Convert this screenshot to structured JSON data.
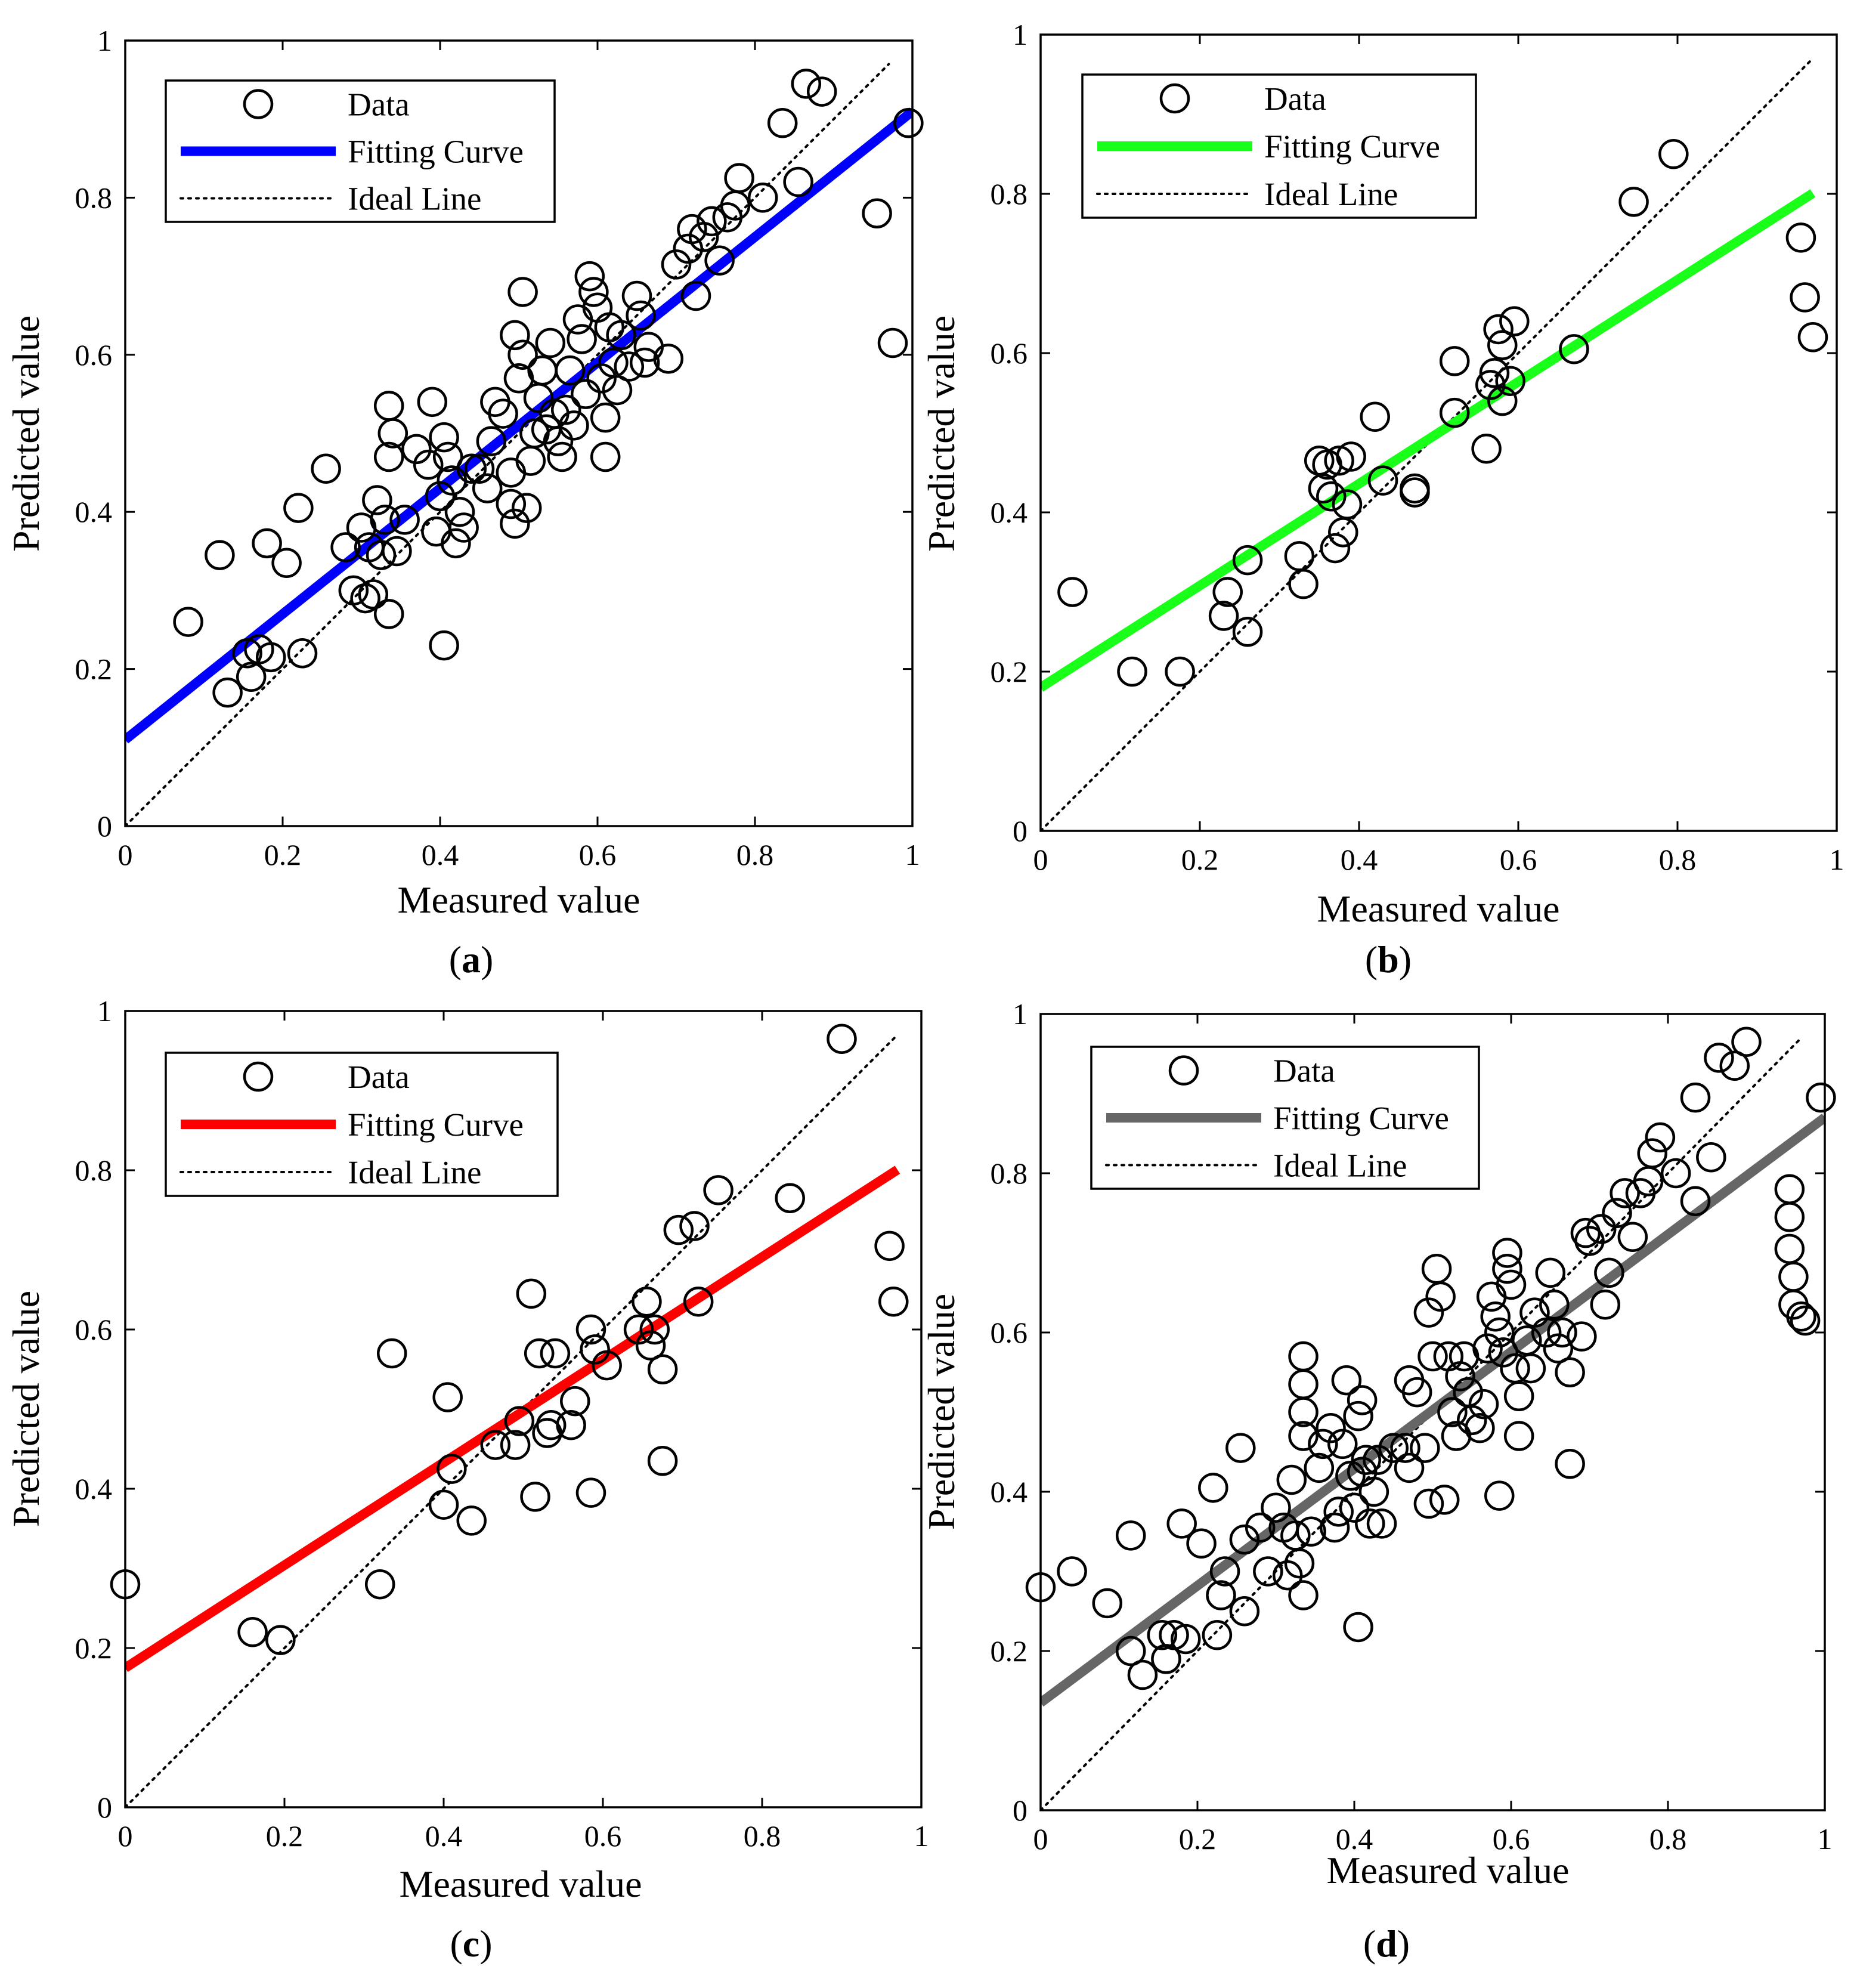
{
  "chart_data": [
    {
      "panel": "a",
      "type": "scatter",
      "caption": "(a)",
      "xlabel": "Measured value",
      "ylabel": "Predicted value",
      "xlim": [
        0,
        1
      ],
      "ylim": [
        0,
        1
      ],
      "xticks": [
        "0",
        "0.2",
        "0.4",
        "0.6",
        "0.8",
        "1"
      ],
      "yticks": [
        "0",
        "0.2",
        "0.4",
        "0.6",
        "0.8",
        "1"
      ],
      "legend": {
        "data": "Data",
        "fit": "Fitting Curve",
        "ideal": "Ideal Line"
      },
      "fit": {
        "slope": 0.8,
        "intercept": 0.11,
        "color": "#0000ff",
        "x_range": [
          0,
          1
        ]
      },
      "ideal_color": "#000000",
      "points": [
        [
          0.08,
          0.26
        ],
        [
          0.12,
          0.345
        ],
        [
          0.13,
          0.17
        ],
        [
          0.155,
          0.22
        ],
        [
          0.16,
          0.19
        ],
        [
          0.17,
          0.225
        ],
        [
          0.18,
          0.36
        ],
        [
          0.185,
          0.215
        ],
        [
          0.205,
          0.335
        ],
        [
          0.22,
          0.405
        ],
        [
          0.225,
          0.22
        ],
        [
          0.255,
          0.455
        ],
        [
          0.28,
          0.355
        ],
        [
          0.29,
          0.3
        ],
        [
          0.3,
          0.38
        ],
        [
          0.305,
          0.29
        ],
        [
          0.31,
          0.355
        ],
        [
          0.315,
          0.295
        ],
        [
          0.32,
          0.415
        ],
        [
          0.325,
          0.345
        ],
        [
          0.33,
          0.39
        ],
        [
          0.335,
          0.27
        ],
        [
          0.335,
          0.535
        ],
        [
          0.34,
          0.5
        ],
        [
          0.335,
          0.47
        ],
        [
          0.345,
          0.35
        ],
        [
          0.355,
          0.39
        ],
        [
          0.37,
          0.48
        ],
        [
          0.385,
          0.46
        ],
        [
          0.39,
          0.54
        ],
        [
          0.395,
          0.375
        ],
        [
          0.4,
          0.42
        ],
        [
          0.405,
          0.495
        ],
        [
          0.405,
          0.23
        ],
        [
          0.41,
          0.47
        ],
        [
          0.415,
          0.44
        ],
        [
          0.42,
          0.36
        ],
        [
          0.425,
          0.4
        ],
        [
          0.43,
          0.38
        ],
        [
          0.44,
          0.455
        ],
        [
          0.45,
          0.455
        ],
        [
          0.46,
          0.43
        ],
        [
          0.465,
          0.49
        ],
        [
          0.47,
          0.54
        ],
        [
          0.48,
          0.525
        ],
        [
          0.49,
          0.45
        ],
        [
          0.49,
          0.41
        ],
        [
          0.495,
          0.385
        ],
        [
          0.495,
          0.625
        ],
        [
          0.5,
          0.57
        ],
        [
          0.505,
          0.68
        ],
        [
          0.505,
          0.6
        ],
        [
          0.51,
          0.405
        ],
        [
          0.515,
          0.465
        ],
        [
          0.52,
          0.5
        ],
        [
          0.525,
          0.545
        ],
        [
          0.53,
          0.58
        ],
        [
          0.535,
          0.505
        ],
        [
          0.54,
          0.615
        ],
        [
          0.545,
          0.525
        ],
        [
          0.55,
          0.49
        ],
        [
          0.555,
          0.47
        ],
        [
          0.56,
          0.53
        ],
        [
          0.565,
          0.58
        ],
        [
          0.57,
          0.51
        ],
        [
          0.575,
          0.645
        ],
        [
          0.58,
          0.62
        ],
        [
          0.585,
          0.55
        ],
        [
          0.59,
          0.7
        ],
        [
          0.595,
          0.68
        ],
        [
          0.6,
          0.66
        ],
        [
          0.605,
          0.57
        ],
        [
          0.61,
          0.52
        ],
        [
          0.61,
          0.47
        ],
        [
          0.615,
          0.635
        ],
        [
          0.62,
          0.59
        ],
        [
          0.625,
          0.555
        ],
        [
          0.63,
          0.625
        ],
        [
          0.64,
          0.585
        ],
        [
          0.65,
          0.675
        ],
        [
          0.655,
          0.65
        ],
        [
          0.66,
          0.59
        ],
        [
          0.665,
          0.61
        ],
        [
          0.69,
          0.595
        ],
        [
          0.7,
          0.715
        ],
        [
          0.715,
          0.735
        ],
        [
          0.72,
          0.76
        ],
        [
          0.725,
          0.675
        ],
        [
          0.735,
          0.75
        ],
        [
          0.745,
          0.77
        ],
        [
          0.755,
          0.72
        ],
        [
          0.765,
          0.775
        ],
        [
          0.775,
          0.79
        ],
        [
          0.78,
          0.825
        ],
        [
          0.81,
          0.8
        ],
        [
          0.835,
          0.895
        ],
        [
          0.855,
          0.82
        ],
        [
          0.865,
          0.945
        ],
        [
          0.885,
          0.935
        ],
        [
          0.955,
          0.78
        ],
        [
          0.975,
          0.615
        ],
        [
          0.995,
          0.895
        ]
      ]
    },
    {
      "panel": "b",
      "type": "scatter",
      "caption": "(b)",
      "xlabel": "Measured value",
      "ylabel": "Predicted value",
      "xlim": [
        0,
        1
      ],
      "ylim": [
        0,
        1
      ],
      "xticks": [
        "0",
        "0.2",
        "0.4",
        "0.6",
        "0.8",
        "1"
      ],
      "yticks": [
        "0",
        "0.2",
        "0.4",
        "0.6",
        "0.8",
        "1"
      ],
      "legend": {
        "data": "Data",
        "fit": "Fitting Curve",
        "ideal": "Ideal Line"
      },
      "fit": {
        "slope": 0.64,
        "intercept": 0.18,
        "color": "#1aff1a",
        "x_range": [
          0,
          0.97
        ]
      },
      "ideal_color": "#000000",
      "points": [
        [
          0.04,
          0.3
        ],
        [
          0.115,
          0.2
        ],
        [
          0.175,
          0.2
        ],
        [
          0.23,
          0.27
        ],
        [
          0.235,
          0.3
        ],
        [
          0.26,
          0.25
        ],
        [
          0.26,
          0.34
        ],
        [
          0.325,
          0.345
        ],
        [
          0.33,
          0.31
        ],
        [
          0.35,
          0.465
        ],
        [
          0.355,
          0.43
        ],
        [
          0.36,
          0.46
        ],
        [
          0.365,
          0.42
        ],
        [
          0.37,
          0.355
        ],
        [
          0.375,
          0.465
        ],
        [
          0.38,
          0.375
        ],
        [
          0.385,
          0.41
        ],
        [
          0.39,
          0.47
        ],
        [
          0.42,
          0.52
        ],
        [
          0.43,
          0.44
        ],
        [
          0.47,
          0.425
        ],
        [
          0.47,
          0.43
        ],
        [
          0.52,
          0.59
        ],
        [
          0.52,
          0.525
        ],
        [
          0.56,
          0.48
        ],
        [
          0.565,
          0.56
        ],
        [
          0.57,
          0.575
        ],
        [
          0.575,
          0.63
        ],
        [
          0.58,
          0.54
        ],
        [
          0.58,
          0.61
        ],
        [
          0.59,
          0.565
        ],
        [
          0.595,
          0.64
        ],
        [
          0.67,
          0.605
        ],
        [
          0.745,
          0.79
        ],
        [
          0.795,
          0.85
        ],
        [
          0.955,
          0.745
        ],
        [
          0.96,
          0.67
        ],
        [
          0.97,
          0.62
        ]
      ]
    },
    {
      "panel": "c",
      "type": "scatter",
      "caption": "(c)",
      "xlabel": "Measured value",
      "ylabel": "Predicted value",
      "xlim": [
        0,
        1
      ],
      "ylim": [
        0,
        1
      ],
      "xticks": [
        "0",
        "0.2",
        "0.4",
        "0.6",
        "0.8",
        "1"
      ],
      "yticks": [
        "0",
        "0.2",
        "0.4",
        "0.6",
        "0.8",
        "1"
      ],
      "legend": {
        "data": "Data",
        "fit": "Fitting Curve",
        "ideal": "Ideal Line"
      },
      "fit": {
        "slope": 0.645,
        "intercept": 0.175,
        "color": "#ff0000",
        "x_range": [
          0,
          0.97
        ]
      },
      "ideal_color": "#000000",
      "points": [
        [
          0.0,
          0.28
        ],
        [
          0.16,
          0.22
        ],
        [
          0.195,
          0.21
        ],
        [
          0.32,
          0.28
        ],
        [
          0.335,
          0.57
        ],
        [
          0.4,
          0.38
        ],
        [
          0.405,
          0.515
        ],
        [
          0.41,
          0.425
        ],
        [
          0.435,
          0.36
        ],
        [
          0.465,
          0.455
        ],
        [
          0.49,
          0.455
        ],
        [
          0.495,
          0.485
        ],
        [
          0.51,
          0.645
        ],
        [
          0.515,
          0.39
        ],
        [
          0.52,
          0.57
        ],
        [
          0.53,
          0.47
        ],
        [
          0.535,
          0.48
        ],
        [
          0.54,
          0.57
        ],
        [
          0.56,
          0.48
        ],
        [
          0.565,
          0.51
        ],
        [
          0.585,
          0.395
        ],
        [
          0.585,
          0.6
        ],
        [
          0.59,
          0.575
        ],
        [
          0.605,
          0.555
        ],
        [
          0.645,
          0.6
        ],
        [
          0.655,
          0.635
        ],
        [
          0.66,
          0.58
        ],
        [
          0.665,
          0.6
        ],
        [
          0.675,
          0.435
        ],
        [
          0.675,
          0.55
        ],
        [
          0.695,
          0.725
        ],
        [
          0.715,
          0.73
        ],
        [
          0.72,
          0.635
        ],
        [
          0.745,
          0.775
        ],
        [
          0.835,
          0.765
        ],
        [
          0.9,
          0.965
        ],
        [
          0.96,
          0.705
        ],
        [
          0.965,
          0.635
        ]
      ]
    },
    {
      "panel": "d",
      "type": "scatter",
      "caption": "(d)",
      "xlabel": "Measured value",
      "ylabel": "Predicted value",
      "xlim": [
        0,
        1
      ],
      "ylim": [
        0,
        1
      ],
      "xticks": [
        "0",
        "0.2",
        "0.4",
        "0.6",
        "0.8",
        "1"
      ],
      "yticks": [
        "0",
        "0.2",
        "0.4",
        "0.6",
        "0.8",
        "1"
      ],
      "legend": {
        "data": "Data",
        "fit": "Fitting Curve",
        "ideal": "Ideal Line"
      },
      "fit": {
        "slope": 0.735,
        "intercept": 0.135,
        "color": "#666666",
        "x_range": [
          0,
          1
        ]
      },
      "ideal_color": "#000000",
      "points": [
        [
          0.0,
          0.28
        ],
        [
          0.04,
          0.3
        ],
        [
          0.085,
          0.26
        ],
        [
          0.115,
          0.345
        ],
        [
          0.115,
          0.2
        ],
        [
          0.13,
          0.17
        ],
        [
          0.155,
          0.22
        ],
        [
          0.16,
          0.19
        ],
        [
          0.17,
          0.22
        ],
        [
          0.18,
          0.36
        ],
        [
          0.185,
          0.215
        ],
        [
          0.205,
          0.335
        ],
        [
          0.22,
          0.405
        ],
        [
          0.225,
          0.22
        ],
        [
          0.23,
          0.27
        ],
        [
          0.235,
          0.3
        ],
        [
          0.255,
          0.455
        ],
        [
          0.26,
          0.25
        ],
        [
          0.26,
          0.34
        ],
        [
          0.28,
          0.355
        ],
        [
          0.29,
          0.3
        ],
        [
          0.3,
          0.38
        ],
        [
          0.31,
          0.355
        ],
        [
          0.315,
          0.295
        ],
        [
          0.32,
          0.415
        ],
        [
          0.325,
          0.345
        ],
        [
          0.33,
          0.31
        ],
        [
          0.335,
          0.27
        ],
        [
          0.335,
          0.57
        ],
        [
          0.335,
          0.535
        ],
        [
          0.335,
          0.5
        ],
        [
          0.335,
          0.47
        ],
        [
          0.345,
          0.35
        ],
        [
          0.355,
          0.43
        ],
        [
          0.36,
          0.46
        ],
        [
          0.37,
          0.48
        ],
        [
          0.375,
          0.355
        ],
        [
          0.38,
          0.375
        ],
        [
          0.385,
          0.46
        ],
        [
          0.39,
          0.54
        ],
        [
          0.395,
          0.42
        ],
        [
          0.4,
          0.38
        ],
        [
          0.405,
          0.495
        ],
        [
          0.405,
          0.23
        ],
        [
          0.41,
          0.515
        ],
        [
          0.41,
          0.425
        ],
        [
          0.415,
          0.44
        ],
        [
          0.42,
          0.36
        ],
        [
          0.425,
          0.4
        ],
        [
          0.43,
          0.44
        ],
        [
          0.435,
          0.36
        ],
        [
          0.45,
          0.455
        ],
        [
          0.465,
          0.455
        ],
        [
          0.47,
          0.43
        ],
        [
          0.47,
          0.54
        ],
        [
          0.48,
          0.525
        ],
        [
          0.49,
          0.455
        ],
        [
          0.495,
          0.625
        ],
        [
          0.495,
          0.385
        ],
        [
          0.5,
          0.57
        ],
        [
          0.505,
          0.68
        ],
        [
          0.51,
          0.645
        ],
        [
          0.515,
          0.39
        ],
        [
          0.52,
          0.57
        ],
        [
          0.525,
          0.5
        ],
        [
          0.53,
          0.47
        ],
        [
          0.535,
          0.545
        ],
        [
          0.54,
          0.57
        ],
        [
          0.545,
          0.525
        ],
        [
          0.55,
          0.49
        ],
        [
          0.56,
          0.48
        ],
        [
          0.565,
          0.51
        ],
        [
          0.57,
          0.58
        ],
        [
          0.575,
          0.645
        ],
        [
          0.58,
          0.62
        ],
        [
          0.585,
          0.395
        ],
        [
          0.585,
          0.6
        ],
        [
          0.59,
          0.575
        ],
        [
          0.595,
          0.7
        ],
        [
          0.595,
          0.68
        ],
        [
          0.6,
          0.66
        ],
        [
          0.605,
          0.555
        ],
        [
          0.61,
          0.52
        ],
        [
          0.61,
          0.47
        ],
        [
          0.62,
          0.59
        ],
        [
          0.625,
          0.555
        ],
        [
          0.63,
          0.625
        ],
        [
          0.645,
          0.6
        ],
        [
          0.65,
          0.675
        ],
        [
          0.655,
          0.635
        ],
        [
          0.66,
          0.58
        ],
        [
          0.665,
          0.6
        ],
        [
          0.675,
          0.435
        ],
        [
          0.675,
          0.55
        ],
        [
          0.69,
          0.595
        ],
        [
          0.695,
          0.725
        ],
        [
          0.7,
          0.715
        ],
        [
          0.715,
          0.73
        ],
        [
          0.72,
          0.635
        ],
        [
          0.725,
          0.675
        ],
        [
          0.735,
          0.75
        ],
        [
          0.745,
          0.775
        ],
        [
          0.755,
          0.72
        ],
        [
          0.765,
          0.775
        ],
        [
          0.775,
          0.79
        ],
        [
          0.78,
          0.825
        ],
        [
          0.79,
          0.845
        ],
        [
          0.81,
          0.8
        ],
        [
          0.835,
          0.765
        ],
        [
          0.835,
          0.895
        ],
        [
          0.855,
          0.82
        ],
        [
          0.865,
          0.945
        ],
        [
          0.885,
          0.935
        ],
        [
          0.9,
          0.965
        ],
        [
          0.955,
          0.78
        ],
        [
          0.955,
          0.745
        ],
        [
          0.955,
          0.705
        ],
        [
          0.96,
          0.67
        ],
        [
          0.96,
          0.635
        ],
        [
          0.97,
          0.62
        ],
        [
          0.975,
          0.615
        ],
        [
          0.995,
          0.895
        ]
      ]
    }
  ]
}
